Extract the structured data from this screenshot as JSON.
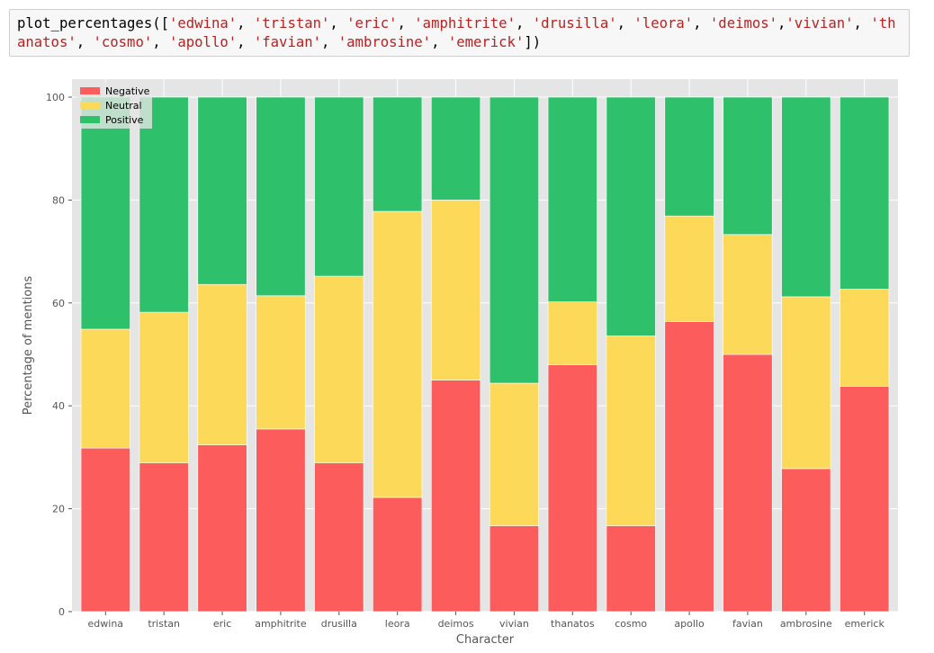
{
  "code": {
    "function": "plot_percentages",
    "open": "([",
    "close": "])",
    "args": [
      "'edwina'",
      "'tristan'",
      "'eric'",
      "'amphitrite'",
      "'drusilla'",
      "'leora'",
      "'deimos'",
      "'vivian'",
      "'thanatos'",
      "'cosmo'",
      "'apollo'",
      "'favian'",
      "'ambrosine'",
      "'emerick'"
    ]
  },
  "chart_data": {
    "type": "bar",
    "stacked": true,
    "categories": [
      "edwina",
      "tristan",
      "eric",
      "amphitrite",
      "drusilla",
      "leora",
      "deimos",
      "vivian",
      "thanatos",
      "cosmo",
      "apollo",
      "favian",
      "ambrosine",
      "emerick"
    ],
    "series": [
      {
        "name": "Negative",
        "color": "#fd5c5c",
        "values": [
          31.8,
          28.9,
          32.4,
          35.5,
          28.9,
          22.2,
          45.0,
          16.7,
          48.0,
          16.7,
          56.4,
          50.0,
          27.8,
          43.8
        ]
      },
      {
        "name": "Neutral",
        "color": "#fdd95a",
        "values": [
          23.1,
          29.3,
          31.2,
          25.9,
          36.3,
          55.6,
          35.0,
          27.7,
          12.2,
          36.9,
          20.5,
          23.3,
          33.4,
          18.9
        ]
      },
      {
        "name": "Positive",
        "color": "#2ec06b",
        "values": [
          45.1,
          41.8,
          36.4,
          38.6,
          34.8,
          22.2,
          20.0,
          55.6,
          39.8,
          46.4,
          23.1,
          26.7,
          38.8,
          37.3
        ]
      }
    ],
    "xlabel": "Character",
    "ylabel": "Percentage of mentions",
    "ylim": [
      0,
      100
    ],
    "yticks": [
      "0",
      "20",
      "40",
      "60",
      "80",
      "100"
    ],
    "grid": true,
    "legend": "top-left",
    "background": "#e5e5e5",
    "grid_color": "#ffffff"
  }
}
